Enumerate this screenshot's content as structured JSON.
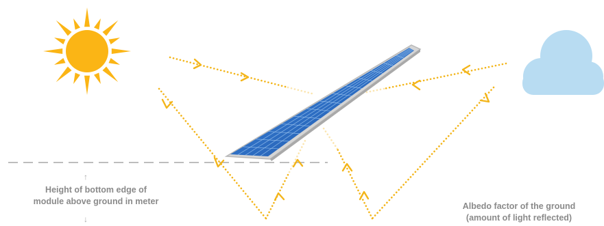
{
  "labels": {
    "height": {
      "line1": "Height of bottom edge of",
      "line2": "module above ground in meter",
      "arrow_up": "↑",
      "arrow_down": "↓"
    },
    "albedo": {
      "line1": "Albedo factor of the ground",
      "line2": "(amount of light reflected)"
    }
  },
  "icons": {
    "sun": "sun-icon",
    "cloud": "cloud-icon",
    "panel": "solar-panel"
  },
  "colors": {
    "sun": "#fbb515",
    "ray": "#f3b51a",
    "cloud": "#b8dcf2",
    "panel_cell": "#2e6fc4",
    "panel_frame": "#c7c7c7",
    "ground_line": "#bdbdbd",
    "label_text": "#8a8a8a"
  }
}
